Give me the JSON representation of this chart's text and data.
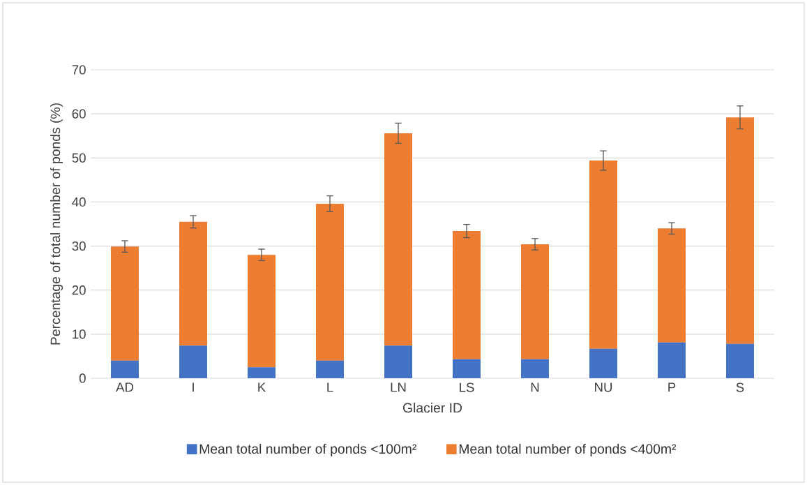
{
  "chart_data": {
    "type": "bar",
    "stacked": true,
    "xlabel": "Glacier ID",
    "ylabel": "Percentage of total number of ponds (%)",
    "categories": [
      "AD",
      "I",
      "K",
      "L",
      "LN",
      "LS",
      "N",
      "NU",
      "P",
      "S"
    ],
    "series": [
      {
        "name": "Mean total number of ponds <100m²",
        "color": "#4472c4",
        "values": [
          4.0,
          7.4,
          2.5,
          4.0,
          7.4,
          4.3,
          4.3,
          6.7,
          8.1,
          7.8
        ]
      },
      {
        "name": "Mean total number of ponds <400m²",
        "color": "#ed7d31",
        "values": [
          25.9,
          28.1,
          25.5,
          35.6,
          48.2,
          29.1,
          26.1,
          42.7,
          25.9,
          51.4
        ],
        "errors": [
          1.3,
          1.4,
          1.3,
          1.8,
          2.3,
          1.5,
          1.3,
          2.2,
          1.3,
          2.6
        ]
      }
    ],
    "ylim": [
      0,
      70
    ],
    "yticks": [
      0,
      10,
      20,
      30,
      40,
      50,
      60,
      70
    ],
    "grid": "y",
    "legend": "bottom"
  }
}
